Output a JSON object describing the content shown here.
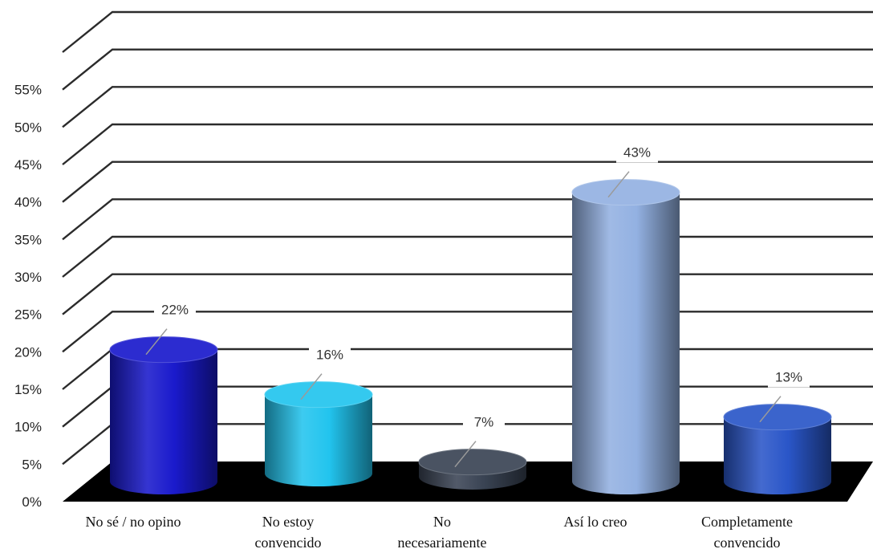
{
  "chart_data": {
    "type": "bar",
    "style": "3d-cylinder",
    "title": "",
    "xlabel": "",
    "ylabel": "",
    "ylim": [
      0,
      55
    ],
    "yticks": [
      "0%",
      "5%",
      "10%",
      "15%",
      "20%",
      "25%",
      "30%",
      "35%",
      "40%",
      "45%",
      "50%",
      "55%"
    ],
    "grid": true,
    "legend": "none",
    "categories": [
      [
        "No sé / no opino"
      ],
      [
        "No estoy",
        "convencido"
      ],
      [
        "No",
        "necesariamente"
      ],
      [
        "Así lo creo"
      ],
      [
        "Completamente",
        "convencido"
      ]
    ],
    "values": [
      22,
      16,
      7,
      43,
      13
    ],
    "data_labels": [
      "22%",
      "16%",
      "7%",
      "43%",
      "13%"
    ],
    "colors": [
      "#1a1acc",
      "#22c4ee",
      "#3a4454",
      "#93b1e2",
      "#2a56c8"
    ],
    "floor_color": "#000000"
  }
}
